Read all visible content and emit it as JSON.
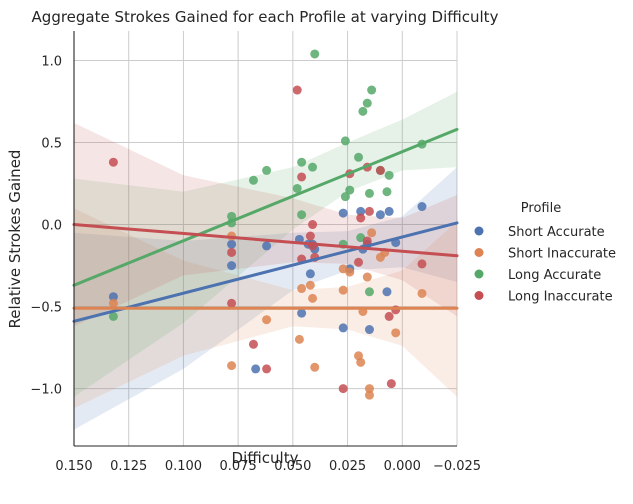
{
  "chart_data": {
    "type": "scatter",
    "title": "Aggregate Strokes Gained for each Profile at varying Difficulty",
    "xlabel": "Difficulty",
    "ylabel": "Relative Strokes Gained",
    "xlim": [
      0.15,
      -0.025
    ],
    "ylim": [
      -1.35,
      1.18
    ],
    "x_inverted": true,
    "grid": true,
    "x_ticks": [
      0.15,
      0.125,
      0.1,
      0.075,
      0.05,
      0.025,
      0.0,
      -0.025
    ],
    "x_tick_labels": [
      "0.150",
      "0.125",
      "0.100",
      "0.075",
      "0.050",
      "0.025",
      "0.000",
      "−0.025"
    ],
    "y_ticks": [
      1.0,
      0.5,
      0.0,
      -0.5,
      -1.0
    ],
    "y_tick_labels": [
      "1.0",
      "0.5",
      "0.0",
      "−0.5",
      "−1.0"
    ],
    "legend": {
      "title": "Profile",
      "placement": "right"
    },
    "series": [
      {
        "name": "Short Accurate",
        "color": "#4c72b0",
        "regression": {
          "x": [
            0.15,
            -0.025
          ],
          "y": [
            -0.59,
            0.01
          ]
        },
        "ci_upper": {
          "x": [
            0.15,
            0.1,
            0.05,
            0.025,
            0.0,
            -0.025
          ],
          "y": [
            -0.05,
            -0.1,
            -0.05,
            -0.04,
            0.05,
            0.35
          ]
        },
        "ci_lower": {
          "x": [
            0.15,
            0.1,
            0.05,
            0.025,
            0.0,
            -0.025
          ],
          "y": [
            -1.25,
            -0.88,
            -0.4,
            -0.28,
            -0.26,
            -0.35
          ]
        },
        "points": [
          {
            "x": 0.132,
            "y": -0.44
          },
          {
            "x": 0.078,
            "y": -0.12
          },
          {
            "x": 0.078,
            "y": -0.25
          },
          {
            "x": 0.067,
            "y": -0.88
          },
          {
            "x": 0.062,
            "y": -0.13
          },
          {
            "x": 0.047,
            "y": -0.09
          },
          {
            "x": 0.046,
            "y": -0.54
          },
          {
            "x": 0.043,
            "y": -0.12
          },
          {
            "x": 0.042,
            "y": -0.3
          },
          {
            "x": 0.041,
            "y": -0.12
          },
          {
            "x": 0.04,
            "y": -0.15
          },
          {
            "x": 0.027,
            "y": 0.07
          },
          {
            "x": 0.027,
            "y": -0.63
          },
          {
            "x": 0.024,
            "y": -0.27
          },
          {
            "x": 0.019,
            "y": 0.08
          },
          {
            "x": 0.018,
            "y": -0.15
          },
          {
            "x": 0.016,
            "y": -0.12
          },
          {
            "x": 0.015,
            "y": -0.64
          },
          {
            "x": 0.01,
            "y": 0.06
          },
          {
            "x": 0.007,
            "y": -0.41
          },
          {
            "x": 0.006,
            "y": 0.08
          },
          {
            "x": 0.003,
            "y": -0.11
          },
          {
            "x": -0.009,
            "y": 0.11
          }
        ]
      },
      {
        "name": "Short Inaccurate",
        "color": "#dd8452",
        "regression": {
          "x": [
            0.15,
            -0.025
          ],
          "y": [
            -0.51,
            -0.51
          ]
        },
        "ci_upper": {
          "x": [
            0.15,
            0.1,
            0.05,
            0.025,
            0.0,
            -0.025
          ],
          "y": [
            0.1,
            -0.22,
            -0.4,
            -0.38,
            -0.28,
            0.02
          ]
        },
        "ci_lower": {
          "x": [
            0.15,
            0.1,
            0.05,
            0.025,
            0.0,
            -0.025
          ],
          "y": [
            -1.12,
            -0.8,
            -0.62,
            -0.64,
            -0.74,
            -1.05
          ]
        },
        "points": [
          {
            "x": 0.132,
            "y": -0.48
          },
          {
            "x": 0.078,
            "y": -0.07
          },
          {
            "x": 0.078,
            "y": -0.86
          },
          {
            "x": 0.062,
            "y": -0.58
          },
          {
            "x": 0.047,
            "y": -0.7
          },
          {
            "x": 0.046,
            "y": -0.39
          },
          {
            "x": 0.042,
            "y": -0.37
          },
          {
            "x": 0.041,
            "y": -0.45
          },
          {
            "x": 0.04,
            "y": -0.87
          },
          {
            "x": 0.027,
            "y": -0.4
          },
          {
            "x": 0.027,
            "y": -0.27
          },
          {
            "x": 0.024,
            "y": -0.29
          },
          {
            "x": 0.02,
            "y": -0.8
          },
          {
            "x": 0.019,
            "y": -0.84
          },
          {
            "x": 0.018,
            "y": -0.53
          },
          {
            "x": 0.016,
            "y": -0.32
          },
          {
            "x": 0.015,
            "y": -1.0
          },
          {
            "x": 0.015,
            "y": -1.04
          },
          {
            "x": 0.014,
            "y": -0.05
          },
          {
            "x": 0.01,
            "y": -0.2
          },
          {
            "x": 0.008,
            "y": -0.17
          },
          {
            "x": 0.003,
            "y": -0.66
          },
          {
            "x": -0.009,
            "y": -0.42
          }
        ]
      },
      {
        "name": "Long Accurate",
        "color": "#55a868",
        "regression": {
          "x": [
            0.15,
            -0.025
          ],
          "y": [
            -0.37,
            0.58
          ]
        },
        "ci_upper": {
          "x": [
            0.15,
            0.1,
            0.05,
            0.025,
            0.0,
            -0.025
          ],
          "y": [
            0.28,
            0.2,
            0.35,
            0.5,
            0.64,
            0.81
          ]
        },
        "ci_lower": {
          "x": [
            0.15,
            0.1,
            0.05,
            0.025,
            0.0,
            -0.025
          ],
          "y": [
            -1.05,
            -0.6,
            -0.03,
            0.2,
            0.33,
            0.35
          ]
        },
        "points": [
          {
            "x": 0.132,
            "y": -0.56
          },
          {
            "x": 0.078,
            "y": 0.05
          },
          {
            "x": 0.078,
            "y": 0.01
          },
          {
            "x": 0.068,
            "y": 0.27
          },
          {
            "x": 0.062,
            "y": 0.33
          },
          {
            "x": 0.048,
            "y": 0.22
          },
          {
            "x": 0.046,
            "y": 0.38
          },
          {
            "x": 0.046,
            "y": 0.06
          },
          {
            "x": 0.041,
            "y": 0.35
          },
          {
            "x": 0.04,
            "y": 1.04
          },
          {
            "x": 0.027,
            "y": -0.12
          },
          {
            "x": 0.026,
            "y": 0.51
          },
          {
            "x": 0.026,
            "y": 0.17
          },
          {
            "x": 0.024,
            "y": 0.21
          },
          {
            "x": 0.02,
            "y": 0.41
          },
          {
            "x": 0.019,
            "y": -0.08
          },
          {
            "x": 0.018,
            "y": 0.69
          },
          {
            "x": 0.016,
            "y": 0.74
          },
          {
            "x": 0.015,
            "y": 0.19
          },
          {
            "x": 0.015,
            "y": -0.41
          },
          {
            "x": 0.014,
            "y": 0.82
          },
          {
            "x": 0.01,
            "y": 0.33
          },
          {
            "x": 0.007,
            "y": 0.2
          },
          {
            "x": 0.006,
            "y": 0.3
          },
          {
            "x": -0.009,
            "y": 0.49
          }
        ]
      },
      {
        "name": "Long Inaccurate",
        "color": "#c44e52",
        "regression": {
          "x": [
            0.15,
            -0.025
          ],
          "y": [
            0.0,
            -0.19
          ]
        },
        "ci_upper": {
          "x": [
            0.15,
            0.1,
            0.05,
            0.025,
            0.0,
            -0.025
          ],
          "y": [
            0.62,
            0.3,
            0.16,
            0.06,
            0.04,
            0.18
          ]
        },
        "ci_lower": {
          "x": [
            0.15,
            0.1,
            0.05,
            0.025,
            0.0,
            -0.025
          ],
          "y": [
            -0.62,
            -0.31,
            -0.23,
            -0.24,
            -0.34,
            -0.56
          ]
        },
        "points": [
          {
            "x": 0.132,
            "y": 0.38
          },
          {
            "x": 0.078,
            "y": -0.17
          },
          {
            "x": 0.078,
            "y": -0.48
          },
          {
            "x": 0.068,
            "y": -0.73
          },
          {
            "x": 0.062,
            "y": -0.88
          },
          {
            "x": 0.048,
            "y": 0.82
          },
          {
            "x": 0.046,
            "y": 0.29
          },
          {
            "x": 0.046,
            "y": -0.21
          },
          {
            "x": 0.042,
            "y": -0.07
          },
          {
            "x": 0.041,
            "y": 0.0
          },
          {
            "x": 0.041,
            "y": -0.13
          },
          {
            "x": 0.04,
            "y": -0.2
          },
          {
            "x": 0.027,
            "y": -1.0
          },
          {
            "x": 0.024,
            "y": 0.31
          },
          {
            "x": 0.02,
            "y": -0.23
          },
          {
            "x": 0.019,
            "y": 0.04
          },
          {
            "x": 0.016,
            "y": 0.35
          },
          {
            "x": 0.016,
            "y": -0.1
          },
          {
            "x": 0.015,
            "y": 0.08
          },
          {
            "x": 0.01,
            "y": 0.33
          },
          {
            "x": 0.006,
            "y": -0.56
          },
          {
            "x": 0.005,
            "y": -0.97
          },
          {
            "x": 0.003,
            "y": -0.52
          },
          {
            "x": -0.009,
            "y": -0.24
          }
        ]
      }
    ]
  }
}
